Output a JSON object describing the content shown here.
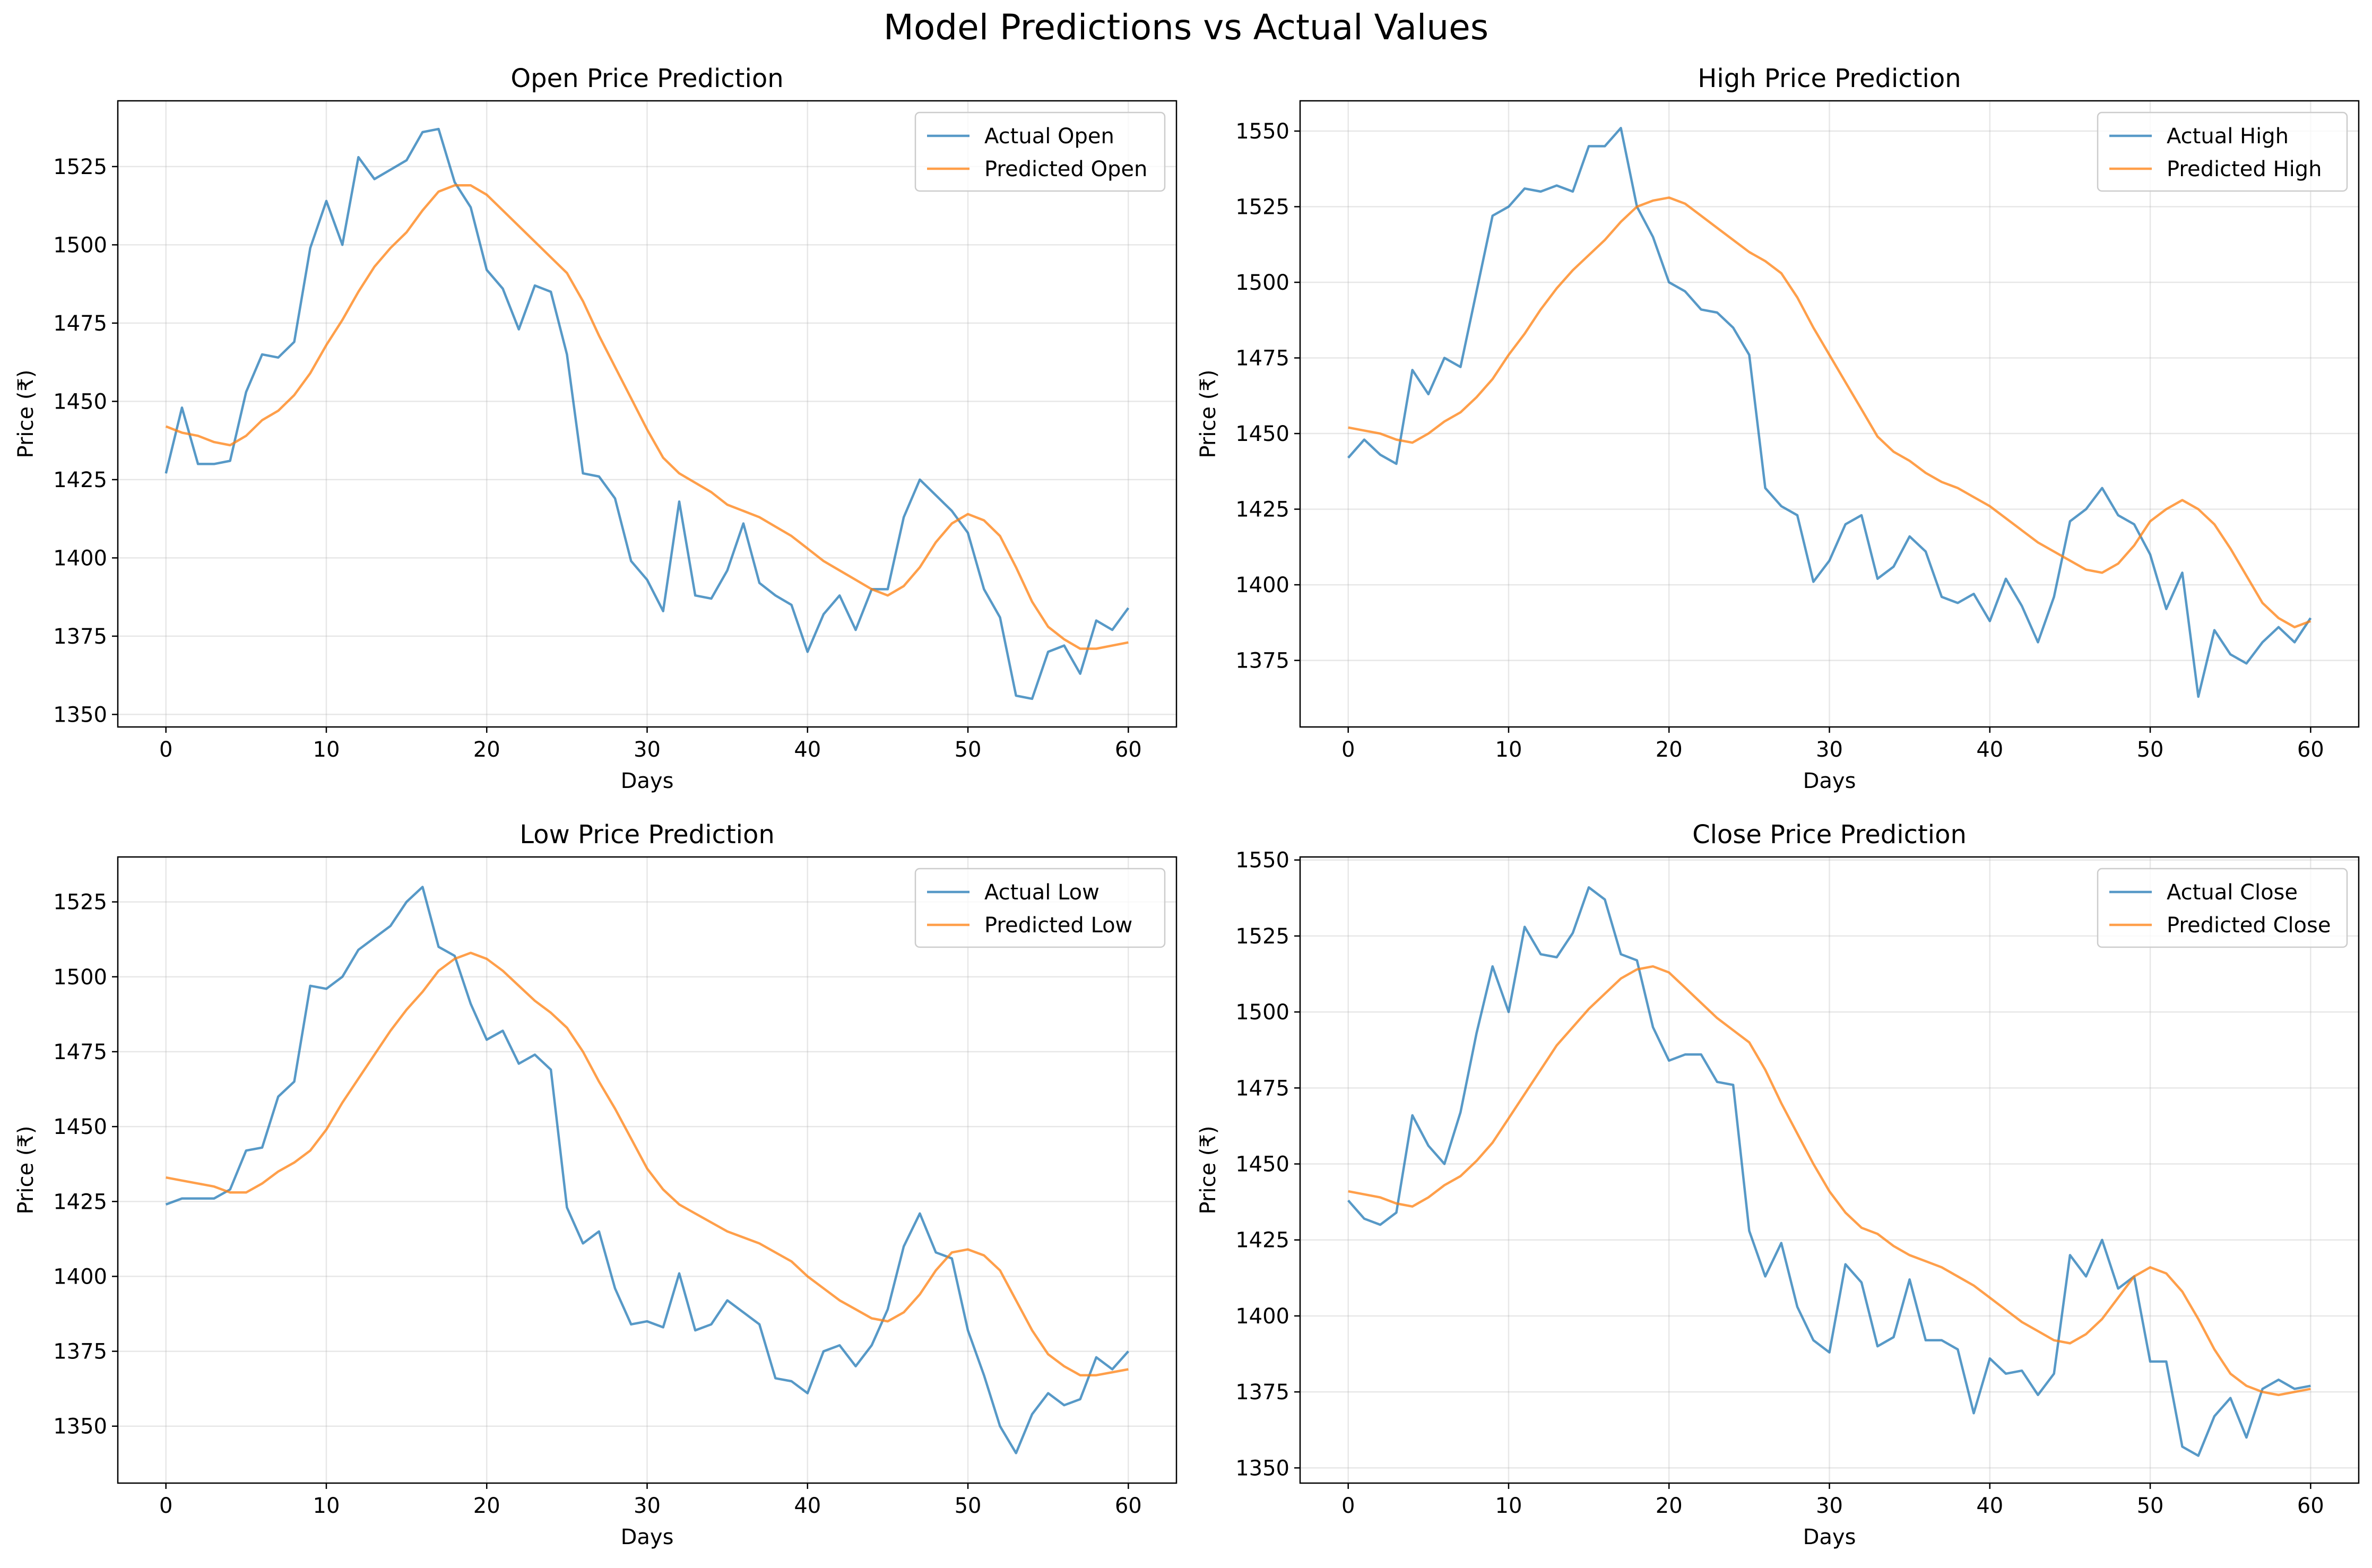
{
  "figure": {
    "suptitle": "Model Predictions vs Actual Values"
  },
  "colors": {
    "actual": "#1f77b4",
    "predicted": "#ff7f0e",
    "grid": "#b0b0b0",
    "axis": "#000000"
  },
  "chart_data": [
    {
      "type": "line",
      "title": "Open Price Prediction",
      "xlabel": "Days",
      "ylabel": "Price (₹)",
      "xlim": [
        -3,
        63
      ],
      "ylim": [
        1346,
        1546
      ],
      "xticks": [
        0,
        10,
        20,
        30,
        40,
        50,
        60
      ],
      "yticks": [
        1350,
        1375,
        1400,
        1425,
        1450,
        1475,
        1500,
        1525
      ],
      "grid": true,
      "legend_position": "top-right",
      "series": [
        {
          "name": "Actual Open",
          "x_start": 0,
          "values": [
            1427,
            1448,
            1430,
            1430,
            1431,
            1453,
            1465,
            1464,
            1469,
            1499,
            1514,
            1500,
            1528,
            1521,
            1524,
            1527,
            1536,
            1537,
            1520,
            1512,
            1492,
            1486,
            1473,
            1487,
            1485,
            1465,
            1427,
            1426,
            1419,
            1399,
            1393,
            1383,
            1418,
            1388,
            1387,
            1396,
            1411,
            1392,
            1388,
            1385,
            1370,
            1382,
            1388,
            1377,
            1390,
            1390,
            1413,
            1425,
            1420,
            1415,
            1408,
            1390,
            1381,
            1356,
            1355,
            1370,
            1372,
            1363,
            1380,
            1377,
            1384
          ]
        },
        {
          "name": "Predicted Open",
          "x_start": 0,
          "values": [
            1442,
            1440,
            1439,
            1437,
            1436,
            1439,
            1444,
            1447,
            1452,
            1459,
            1468,
            1476,
            1485,
            1493,
            1499,
            1504,
            1511,
            1517,
            1519,
            1519,
            1516,
            1511,
            1506,
            1501,
            1496,
            1491,
            1482,
            1471,
            1461,
            1451,
            1441,
            1432,
            1427,
            1424,
            1421,
            1417,
            1415,
            1413,
            1410,
            1407,
            1403,
            1399,
            1396,
            1393,
            1390,
            1388,
            1391,
            1397,
            1405,
            1411,
            1414,
            1412,
            1407,
            1397,
            1386,
            1378,
            1374,
            1371,
            1371,
            1372,
            1373
          ]
        }
      ]
    },
    {
      "type": "line",
      "title": "High Price Prediction",
      "xlabel": "Days",
      "ylabel": "Price (₹)",
      "xlim": [
        -3,
        63
      ],
      "ylim": [
        1353,
        1560
      ],
      "xticks": [
        0,
        10,
        20,
        30,
        40,
        50,
        60
      ],
      "yticks": [
        1375,
        1400,
        1425,
        1450,
        1475,
        1500,
        1525,
        1550
      ],
      "grid": true,
      "legend_position": "top-right",
      "series": [
        {
          "name": "Actual High",
          "x_start": 0,
          "values": [
            1442,
            1448,
            1443,
            1440,
            1471,
            1463,
            1475,
            1472,
            1497,
            1522,
            1525,
            1531,
            1530,
            1532,
            1530,
            1545,
            1545,
            1551,
            1525,
            1515,
            1500,
            1497,
            1491,
            1490,
            1485,
            1476,
            1432,
            1426,
            1423,
            1401,
            1408,
            1420,
            1423,
            1402,
            1406,
            1416,
            1411,
            1396,
            1394,
            1397,
            1388,
            1402,
            1393,
            1381,
            1396,
            1421,
            1425,
            1432,
            1423,
            1420,
            1410,
            1392,
            1404,
            1363,
            1385,
            1377,
            1374,
            1381,
            1386,
            1381,
            1389
          ]
        },
        {
          "name": "Predicted High",
          "x_start": 0,
          "values": [
            1452,
            1451,
            1450,
            1448,
            1447,
            1450,
            1454,
            1457,
            1462,
            1468,
            1476,
            1483,
            1491,
            1498,
            1504,
            1509,
            1514,
            1520,
            1525,
            1527,
            1528,
            1526,
            1522,
            1518,
            1514,
            1510,
            1507,
            1503,
            1495,
            1485,
            1476,
            1467,
            1458,
            1449,
            1444,
            1441,
            1437,
            1434,
            1432,
            1429,
            1426,
            1422,
            1418,
            1414,
            1411,
            1408,
            1405,
            1404,
            1407,
            1413,
            1421,
            1425,
            1428,
            1425,
            1420,
            1412,
            1403,
            1394,
            1389,
            1386,
            1388
          ]
        }
      ]
    },
    {
      "type": "line",
      "title": "Low Price Prediction",
      "xlabel": "Days",
      "ylabel": "Price (₹)",
      "xlim": [
        -3,
        63
      ],
      "ylim": [
        1331,
        1540
      ],
      "xticks": [
        0,
        10,
        20,
        30,
        40,
        50,
        60
      ],
      "yticks": [
        1350,
        1375,
        1400,
        1425,
        1450,
        1475,
        1500,
        1525
      ],
      "grid": true,
      "legend_position": "top-right",
      "series": [
        {
          "name": "Actual Low",
          "x_start": 0,
          "values": [
            1424,
            1426,
            1426,
            1426,
            1429,
            1442,
            1443,
            1460,
            1465,
            1497,
            1496,
            1500,
            1509,
            1513,
            1517,
            1525,
            1530,
            1510,
            1507,
            1491,
            1479,
            1482,
            1471,
            1474,
            1469,
            1423,
            1411,
            1415,
            1396,
            1384,
            1385,
            1383,
            1401,
            1382,
            1384,
            1392,
            1388,
            1384,
            1366,
            1365,
            1361,
            1375,
            1377,
            1370,
            1377,
            1389,
            1410,
            1421,
            1408,
            1406,
            1382,
            1367,
            1350,
            1341,
            1354,
            1361,
            1357,
            1359,
            1373,
            1369,
            1375
          ]
        },
        {
          "name": "Predicted Low",
          "x_start": 0,
          "values": [
            1433,
            1432,
            1431,
            1430,
            1428,
            1428,
            1431,
            1435,
            1438,
            1442,
            1449,
            1458,
            1466,
            1474,
            1482,
            1489,
            1495,
            1502,
            1506,
            1508,
            1506,
            1502,
            1497,
            1492,
            1488,
            1483,
            1475,
            1465,
            1456,
            1446,
            1436,
            1429,
            1424,
            1421,
            1418,
            1415,
            1413,
            1411,
            1408,
            1405,
            1400,
            1396,
            1392,
            1389,
            1386,
            1385,
            1388,
            1394,
            1402,
            1408,
            1409,
            1407,
            1402,
            1392,
            1382,
            1374,
            1370,
            1367,
            1367,
            1368,
            1369
          ]
        }
      ]
    },
    {
      "type": "line",
      "title": "Close Price Prediction",
      "xlabel": "Days",
      "ylabel": "Price (₹)",
      "xlim": [
        -3,
        63
      ],
      "ylim": [
        1345,
        1551
      ],
      "xticks": [
        0,
        10,
        20,
        30,
        40,
        50,
        60
      ],
      "yticks": [
        1350,
        1375,
        1400,
        1425,
        1450,
        1475,
        1500,
        1525,
        1550
      ],
      "grid": true,
      "legend_position": "top-right",
      "series": [
        {
          "name": "Actual Close",
          "x_start": 0,
          "values": [
            1438,
            1432,
            1430,
            1434,
            1466,
            1456,
            1450,
            1467,
            1493,
            1515,
            1500,
            1528,
            1519,
            1518,
            1526,
            1541,
            1537,
            1519,
            1517,
            1495,
            1484,
            1486,
            1486,
            1477,
            1476,
            1428,
            1413,
            1424,
            1403,
            1392,
            1388,
            1417,
            1411,
            1390,
            1393,
            1412,
            1392,
            1392,
            1389,
            1368,
            1386,
            1381,
            1382,
            1374,
            1381,
            1420,
            1413,
            1425,
            1409,
            1413,
            1385,
            1385,
            1357,
            1354,
            1367,
            1373,
            1360,
            1376,
            1379,
            1376,
            1377
          ]
        },
        {
          "name": "Predicted Close",
          "x_start": 0,
          "values": [
            1441,
            1440,
            1439,
            1437,
            1436,
            1439,
            1443,
            1446,
            1451,
            1457,
            1465,
            1473,
            1481,
            1489,
            1495,
            1501,
            1506,
            1511,
            1514,
            1515,
            1513,
            1508,
            1503,
            1498,
            1494,
            1490,
            1481,
            1470,
            1460,
            1450,
            1441,
            1434,
            1429,
            1427,
            1423,
            1420,
            1418,
            1416,
            1413,
            1410,
            1406,
            1402,
            1398,
            1395,
            1392,
            1391,
            1394,
            1399,
            1406,
            1413,
            1416,
            1414,
            1408,
            1399,
            1389,
            1381,
            1377,
            1375,
            1374,
            1375,
            1376
          ]
        }
      ]
    }
  ]
}
